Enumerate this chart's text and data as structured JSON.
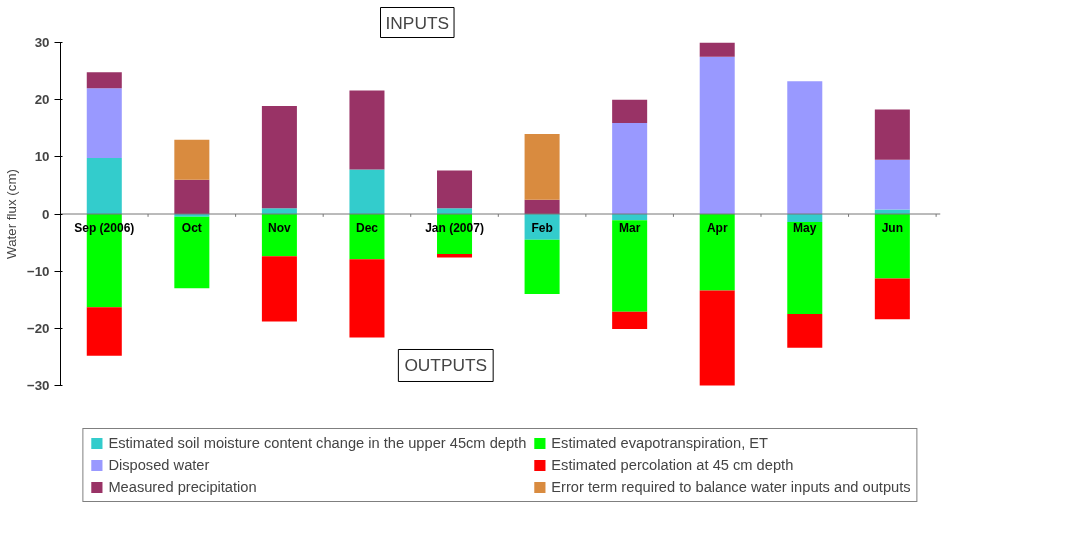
{
  "chart_data": {
    "type": "bar",
    "stacked": true,
    "ylabel": "Water flux (cm)",
    "categories": [
      "Sep (2006)",
      "Oct",
      "Nov",
      "Dec",
      "Jan (2007)",
      "Feb",
      "Mar",
      "Apr",
      "May",
      "Jun"
    ],
    "series": [
      {
        "name": "Estimated soil moisture content change in the upper 45cm depth",
        "color": "#33cccc",
        "values": [
          9.8,
          -0.5,
          1,
          7.8,
          1,
          -4.5,
          -1.1,
          null,
          -1.4,
          0.8
        ]
      },
      {
        "name": "Disposed water",
        "color": "#9999ff",
        "values": [
          12.2,
          null,
          null,
          null,
          null,
          null,
          15.9,
          27.5,
          23.2,
          8.7
        ]
      },
      {
        "name": "Measured precipitation",
        "color": "#993366",
        "values": [
          2.8,
          6,
          17.9,
          13.8,
          6.6,
          2.5,
          4.1,
          2.5,
          null,
          8.8
        ]
      },
      {
        "name": "Estimated evapotranspiration, ET",
        "color": "#00ff00",
        "values": [
          -16.3,
          -12.5,
          -7.4,
          -7.9,
          -7,
          -9.5,
          -16,
          -13.4,
          -16.1,
          -11.3
        ]
      },
      {
        "name": "Estimated percolation at 45 cm depth",
        "color": "#ff0000",
        "values": [
          -8.5,
          null,
          -11.4,
          -13.7,
          -0.6,
          null,
          -3,
          -16.9,
          -5.9,
          -7.1
        ]
      },
      {
        "name": "Error term required to balance water inputs and outputs",
        "color": "#d98b3f",
        "values": [
          null,
          7,
          null,
          null,
          null,
          11.5,
          null,
          null,
          null,
          null
        ]
      }
    ],
    "ylim": [
      -30,
      30
    ],
    "yticks": [
      -30,
      -20,
      -10,
      0,
      10,
      20,
      30
    ],
    "grid": false,
    "legend": "bottom",
    "annotations": [
      "INPUTS",
      "OUTPUTS"
    ]
  }
}
